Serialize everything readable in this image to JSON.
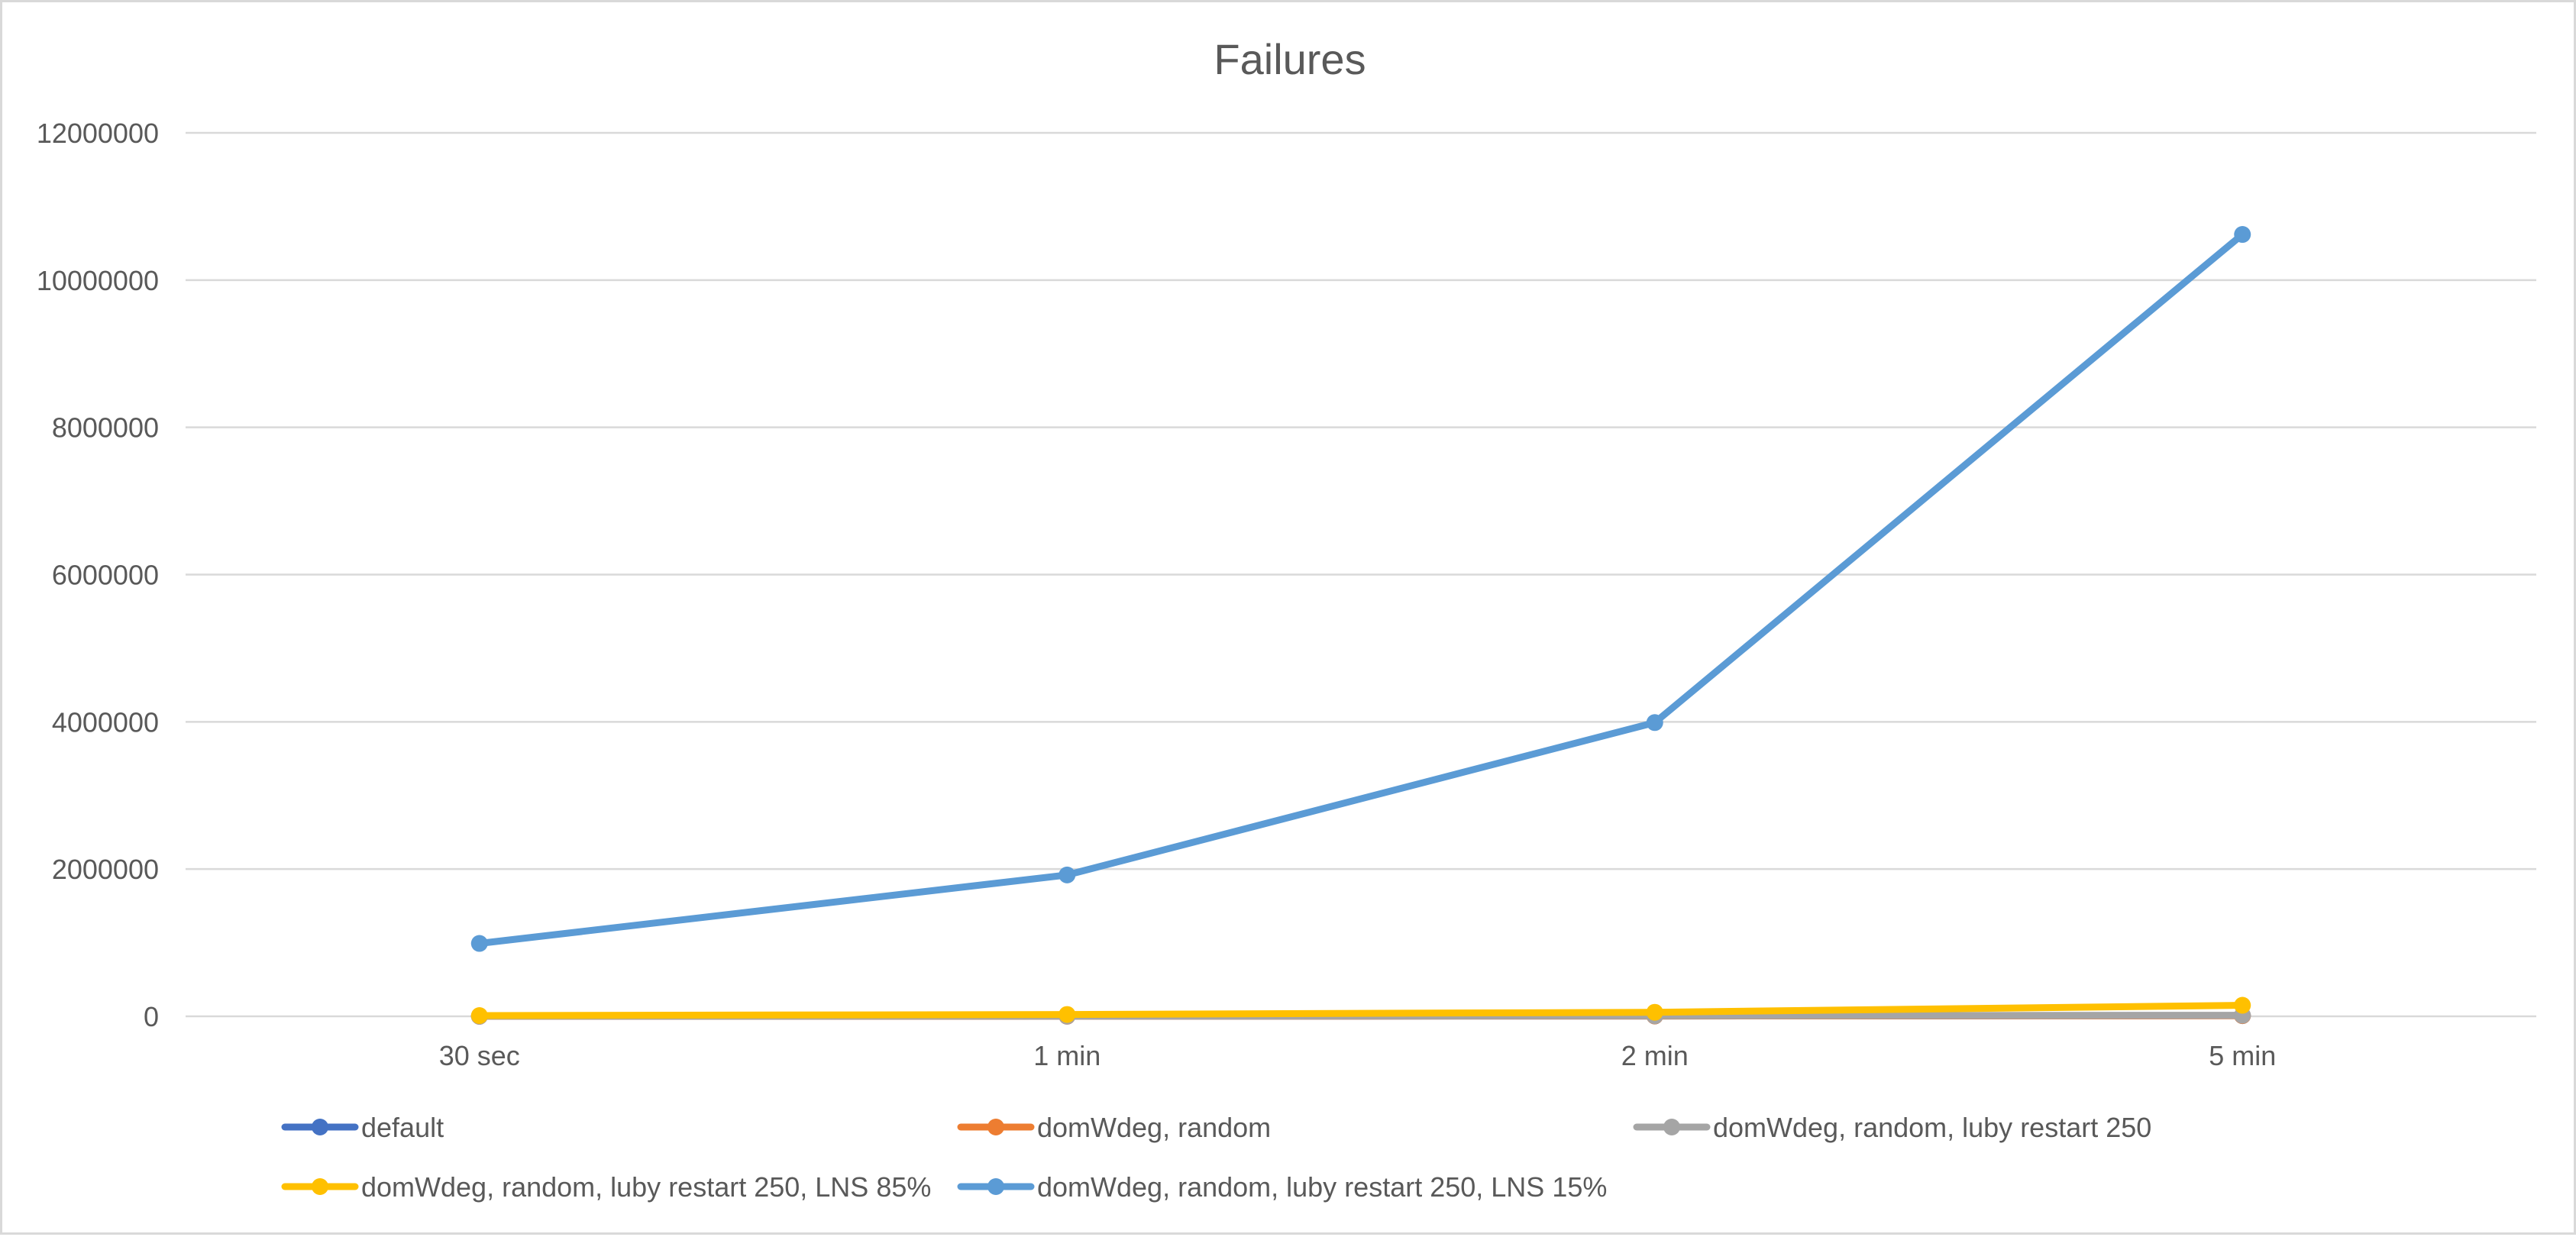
{
  "chart_data": {
    "type": "line",
    "title": "Failures",
    "xlabel": "",
    "ylabel": "",
    "categories": [
      "30 sec",
      "1 min",
      "2 min",
      "5 min"
    ],
    "ylim": [
      0,
      12000000
    ],
    "yticks": [
      0,
      2000000,
      4000000,
      6000000,
      8000000,
      10000000,
      12000000
    ],
    "ytick_labels": [
      "0",
      "2000000",
      "4000000",
      "6000000",
      "8000000",
      "10000000",
      "12000000"
    ],
    "grid": true,
    "legend_position": "bottom",
    "series": [
      {
        "name": "default",
        "color": "#4472c4",
        "values": [
          1000,
          2000,
          4000,
          9000
        ]
      },
      {
        "name": "domWdeg, random",
        "color": "#ed7d31",
        "values": [
          1000,
          2000,
          4000,
          9000
        ]
      },
      {
        "name": "domWdeg, random, luby restart 250",
        "color": "#a5a5a5",
        "values": [
          2000,
          4000,
          8000,
          15000
        ]
      },
      {
        "name": "domWdeg, random, luby restart 250, LNS 85%",
        "color": "#ffc000",
        "values": [
          10000,
          25000,
          55000,
          150000
        ]
      },
      {
        "name": "domWdeg, random, luby restart 250, LNS 15%",
        "color": "#5b9bd5",
        "values": [
          990000,
          1920000,
          3990000,
          10620000
        ]
      }
    ]
  }
}
